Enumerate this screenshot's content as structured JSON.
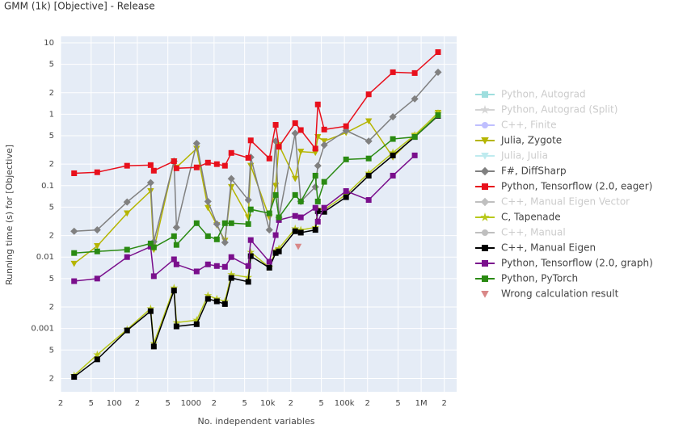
{
  "chart_data": {
    "type": "line",
    "title": "GMM (1k) [Objective] - Release",
    "x_label": "No. independent variables",
    "y_label": "Running time (s) for [Objective]",
    "xscale": "log",
    "yscale": "log",
    "grid": true,
    "legend": "right",
    "xlim": [
      20,
      2900000
    ],
    "ylim": [
      0.00013,
      12.3
    ],
    "xticks": [
      {
        "value": 20,
        "label": "2"
      },
      {
        "value": 50,
        "label": "5"
      },
      100,
      {
        "value": 200,
        "label": "2"
      },
      {
        "value": 500,
        "label": "5"
      },
      1000,
      {
        "value": 2000,
        "label": "2"
      },
      {
        "value": 5000,
        "label": "5"
      },
      {
        "value": 10000,
        "label": "10k"
      },
      {
        "value": 20000,
        "label": "2"
      },
      {
        "value": 50000,
        "label": "5"
      },
      {
        "value": 100000,
        "label": "100k"
      },
      {
        "value": 200000,
        "label": "2"
      },
      {
        "value": 500000,
        "label": "5"
      },
      {
        "value": 1000000,
        "label": "1M"
      },
      {
        "value": 2000000,
        "label": "2"
      }
    ],
    "yticks": [
      10,
      5,
      2,
      1,
      {
        "value": 0.5,
        "label": "5"
      },
      {
        "value": 0.2,
        "label": "2"
      },
      0.1,
      {
        "value": 0.05,
        "label": "5"
      },
      {
        "value": 0.02,
        "label": "2"
      },
      0.01,
      {
        "value": 0.005,
        "label": "5"
      },
      {
        "value": 0.002,
        "label": "2"
      },
      0.001,
      {
        "value": 0.0005,
        "label": "5"
      },
      {
        "value": 0.0002,
        "label": "2"
      }
    ],
    "x": [
      30,
      60,
      147,
      298,
      328,
      601,
      647,
      1186,
      1664,
      2173,
      2770,
      3357,
      5580,
      6010,
      10500,
      12700,
      14000,
      22800,
      27000,
      41800,
      45000,
      54500,
      105000,
      207000,
      428000,
      824000,
      1660000
    ],
    "series": [
      {
        "name": "Python, Autograd",
        "color": "#3fbfbf",
        "marker": "square",
        "visible": false
      },
      {
        "name": "Python, Autograd (Split)",
        "color": "#aaaaaa",
        "marker": "star",
        "visible": false
      },
      {
        "name": "C++, Finite",
        "color": "#8080ff",
        "marker": "circle",
        "visible": false
      },
      {
        "name": "Julia, Zygote",
        "color": "#b5b500",
        "marker": "triangle-down",
        "visible": true,
        "values": [
          0.0081,
          0.0143,
          0.041,
          0.084,
          0.0127,
          0.22,
          0.18,
          0.33,
          0.049,
          0.028,
          0.017,
          0.096,
          0.036,
          0.19,
          0.036,
          0.1,
          0.37,
          0.125,
          0.3,
          0.29,
          0.48,
          0.42,
          0.55,
          0.8,
          0.25,
          0.5,
          1.05
        ]
      },
      {
        "name": "Julia, Julia",
        "color": "#80d8e0",
        "marker": "triangle-down",
        "visible": false
      },
      {
        "name": "F#, DiffSharp",
        "color": "#808080",
        "marker": "diamond",
        "visible": true,
        "values": [
          0.023,
          0.024,
          0.059,
          0.11,
          0.0164,
          0.22,
          0.026,
          0.39,
          0.06,
          0.029,
          0.016,
          0.125,
          0.063,
          0.25,
          0.024,
          0.42,
          0.036,
          0.54,
          0.06,
          0.096,
          0.19,
          0.37,
          0.59,
          0.42,
          0.92,
          1.64,
          3.87
        ]
      },
      {
        "name": "Python, Tensorflow (2.0, eager)",
        "color": "#e8101c",
        "marker": "square",
        "visible": true,
        "values": [
          0.149,
          0.154,
          0.19,
          0.194,
          0.162,
          0.22,
          0.175,
          0.18,
          0.21,
          0.2,
          0.19,
          0.287,
          0.245,
          0.43,
          0.24,
          0.71,
          0.35,
          0.75,
          0.6,
          0.33,
          1.37,
          0.61,
          0.68,
          1.9,
          3.87,
          3.77,
          7.4
        ]
      },
      {
        "name": "C++, Manual Eigen Vector",
        "color": "#808080",
        "marker": "diamond",
        "visible": false
      },
      {
        "name": "C, Tapenade",
        "color": "#b8c81a",
        "marker": "star",
        "visible": true,
        "values": [
          0.00022,
          0.00043,
          0.00097,
          0.0019,
          0.00062,
          0.0037,
          0.00121,
          0.00131,
          0.0029,
          0.0026,
          0.0024,
          0.0057,
          0.0052,
          0.0117,
          0.0072,
          0.0123,
          0.0132,
          0.025,
          0.024,
          0.026,
          0.047,
          0.046,
          0.075,
          0.15,
          0.29,
          0.51,
          1.03
        ]
      },
      {
        "name": "C++, Manual",
        "color": "#808080",
        "marker": "circle",
        "visible": false
      },
      {
        "name": "C++, Manual Eigen",
        "color": "#000000",
        "marker": "square",
        "visible": true,
        "values": [
          0.00021,
          0.00037,
          0.00094,
          0.00175,
          0.00056,
          0.0034,
          0.00107,
          0.00115,
          0.0026,
          0.0024,
          0.0022,
          0.0051,
          0.0045,
          0.0103,
          0.0071,
          0.0114,
          0.012,
          0.023,
          0.022,
          0.024,
          0.044,
          0.043,
          0.069,
          0.138,
          0.265,
          0.48,
          0.95
        ]
      },
      {
        "name": "Python, Tensorflow (2.0, graph)",
        "color": "#7a0f8c",
        "marker": "square",
        "visible": true,
        "values": [
          0.0046,
          0.005,
          0.01,
          0.014,
          0.0054,
          0.0093,
          0.0079,
          0.0063,
          0.0079,
          0.0075,
          0.0073,
          0.01,
          0.0075,
          0.0173,
          0.0086,
          0.0203,
          0.033,
          0.0377,
          0.036,
          0.049,
          0.0313,
          0.049,
          0.084,
          0.063,
          0.138,
          0.265,
          null
        ]
      },
      {
        "name": "Python, PyTorch",
        "color": "#2a8a12",
        "marker": "square",
        "visible": true,
        "values": [
          0.0114,
          0.012,
          0.0127,
          0.0155,
          0.0137,
          0.0196,
          0.0148,
          0.0298,
          0.0196,
          0.0177,
          0.0298,
          0.0298,
          0.029,
          0.0465,
          0.041,
          0.074,
          0.036,
          0.074,
          0.06,
          0.138,
          0.06,
          0.113,
          0.233,
          0.24,
          0.45,
          0.48,
          0.97
        ]
      },
      {
        "name": "Wrong calculation result",
        "color": "#d98888",
        "marker": "triangle-down",
        "visible": true,
        "noline": true,
        "x": [
          25000
        ],
        "values": [
          0.014
        ]
      }
    ]
  }
}
